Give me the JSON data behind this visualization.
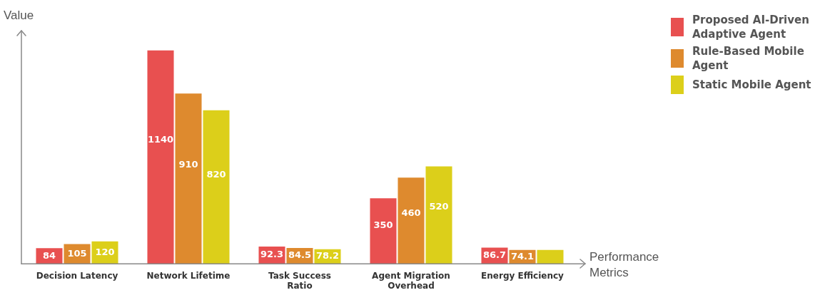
{
  "chart_data": {
    "type": "bar",
    "xlabel": "Performance Metrics",
    "ylabel": "Value",
    "categories": [
      "Decision Latency",
      "Network Lifetime",
      "Task Success Ratio",
      "Agent Migration Overhead",
      "Energy Efficiency"
    ],
    "series": [
      {
        "name": "Proposed AI-Driven Adaptive Agent",
        "color": "#e85050",
        "values": [
          84,
          1140,
          92.3,
          350,
          86.7
        ],
        "value_labels": [
          "84",
          "1140",
          "92.3",
          "350",
          "86.7"
        ]
      },
      {
        "name": "Rule-Based Mobile Agent",
        "color": "#de8a2e",
        "values": [
          105,
          910,
          84.5,
          460,
          74.1
        ],
        "value_labels": [
          "105",
          "910",
          "84.5",
          "460",
          "74.1"
        ]
      },
      {
        "name": "Static Mobile Agent",
        "color": "#dccf1a",
        "values": [
          120,
          820,
          78.2,
          520,
          74
        ],
        "value_labels": [
          "120",
          "820",
          "78.2",
          "520",
          null
        ]
      }
    ],
    "legend": "top right",
    "grid": false,
    "tick_labels": "x"
  }
}
